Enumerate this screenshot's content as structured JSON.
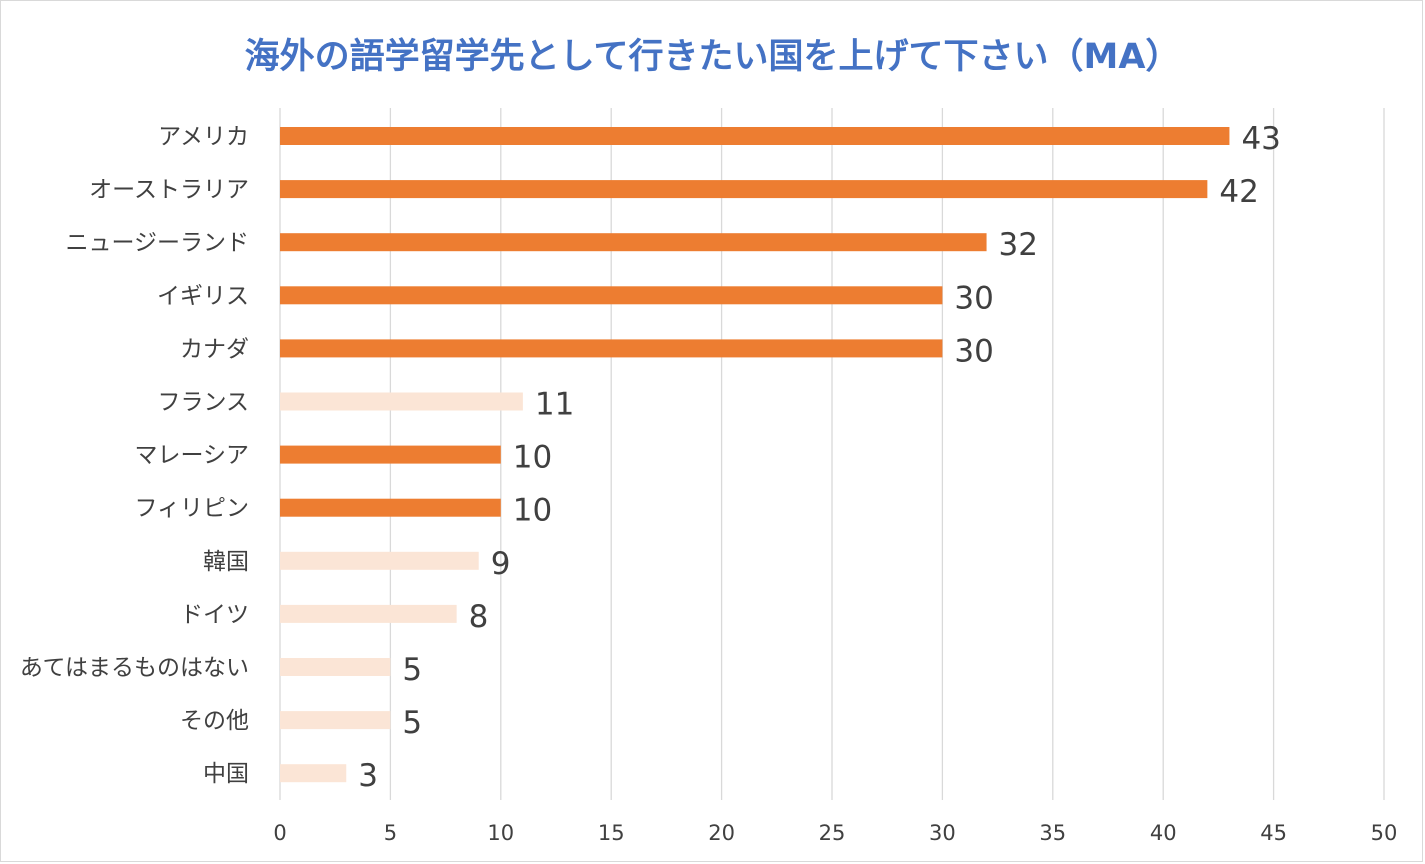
{
  "chart_data": {
    "type": "bar",
    "orientation": "horizontal",
    "title": "海外の語学留学先として行きたい国を上げて下さい（MA）",
    "xlabel": "",
    "ylabel": "",
    "xlim": [
      0,
      50
    ],
    "x_ticks": [
      0,
      5,
      10,
      15,
      20,
      25,
      30,
      35,
      40,
      45,
      50
    ],
    "grid": true,
    "legend": "none",
    "colors": {
      "highlight": "#ed7d31",
      "muted": "#fbe5d6",
      "title": "#4472c4",
      "text": "#404040",
      "grid": "#d9d9d9"
    },
    "categories": [
      "アメリカ",
      "オーストラリア",
      "ニュージーランド",
      "イギリス",
      "カナダ",
      "フランス",
      "マレーシア",
      "フィリピン",
      "韓国",
      "ドイツ",
      "あてはまるものはない",
      "その他",
      "中国"
    ],
    "values": [
      43,
      42,
      32,
      30,
      30,
      11,
      10,
      10,
      9,
      8,
      5,
      5,
      3
    ],
    "highlighted": [
      true,
      true,
      true,
      true,
      true,
      false,
      true,
      true,
      false,
      false,
      false,
      false,
      false
    ]
  }
}
